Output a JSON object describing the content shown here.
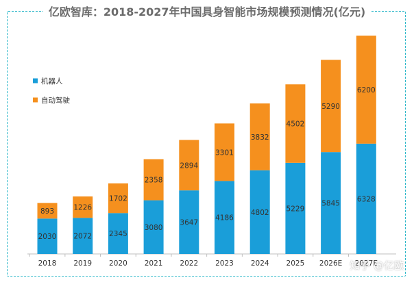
{
  "chart_data": {
    "type": "bar",
    "stacked": true,
    "title": "亿欧智库：2018-2027年中国具身智能市场规模预测情况(亿元)",
    "categories": [
      "2018",
      "2019",
      "2020",
      "2021",
      "2022",
      "2023",
      "2024",
      "2025",
      "2026E",
      "2027E"
    ],
    "series": [
      {
        "name": "机器人",
        "color": "#1a9ed9",
        "values": [
          2030,
          2072,
          2345,
          3080,
          3647,
          4186,
          4802,
          5229,
          5845,
          6328
        ]
      },
      {
        "name": "自动驾驶",
        "color": "#f5901e",
        "values": [
          893,
          1226,
          1702,
          2358,
          2894,
          3301,
          3832,
          4502,
          5290,
          6200
        ]
      }
    ],
    "ylim": [
      0,
      13000
    ],
    "legend_position": "left",
    "grid": false
  },
  "watermark": "知乎 @亿欧"
}
